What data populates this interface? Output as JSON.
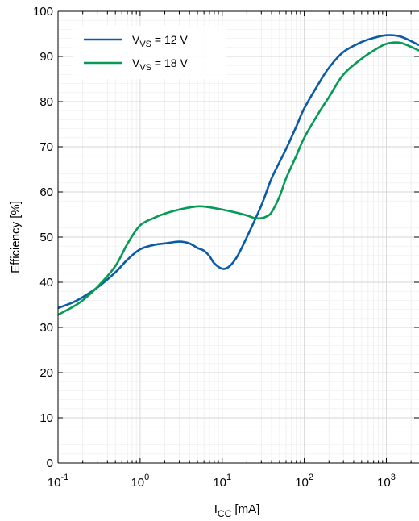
{
  "chart_data": {
    "type": "line",
    "xscale": "log",
    "xlim": [
      0.1,
      2500
    ],
    "ylim": [
      0,
      100
    ],
    "grid": true,
    "legend_position": "top-left",
    "xlabel": {
      "main": "I",
      "sub": "CC",
      "unit": " [mA]"
    },
    "ylabel": "Efficiency [%]",
    "x_ticks": [
      {
        "value": 0.1,
        "base": "10",
        "exp": "-1"
      },
      {
        "value": 1,
        "base": "10",
        "exp": "0"
      },
      {
        "value": 10,
        "base": "10",
        "exp": "1"
      },
      {
        "value": 100,
        "base": "10",
        "exp": "2"
      },
      {
        "value": 1000,
        "base": "10",
        "exp": "3"
      }
    ],
    "y_ticks": [
      "0",
      "10",
      "20",
      "30",
      "40",
      "50",
      "60",
      "70",
      "80",
      "90",
      "100"
    ],
    "series": [
      {
        "label": {
          "main": "V",
          "sub": "VS",
          "rest": " = 12 V"
        },
        "color": "#0a5ca8",
        "x": [
          0.1,
          0.15,
          0.2,
          0.3,
          0.5,
          0.7,
          1,
          1.5,
          2,
          3,
          4,
          5,
          6,
          7,
          8,
          10,
          12,
          15,
          20,
          30,
          40,
          60,
          80,
          100,
          150,
          200,
          300,
          500,
          700,
          1000,
          1500,
          2500
        ],
        "y": [
          34.3,
          35.5,
          36.7,
          38.8,
          42.2,
          45.0,
          47.3,
          48.3,
          48.6,
          49.0,
          48.6,
          47.6,
          47.0,
          45.8,
          44.2,
          43.0,
          43.4,
          45.5,
          50.0,
          57.0,
          63.0,
          69.5,
          74.5,
          78.5,
          84.0,
          87.5,
          91.0,
          93.2,
          94.1,
          94.7,
          94.4,
          92.5
        ]
      },
      {
        "label": {
          "main": "V",
          "sub": "VS",
          "rest": " = 18 V"
        },
        "color": "#079a56",
        "x": [
          0.1,
          0.15,
          0.2,
          0.3,
          0.5,
          0.7,
          1,
          1.5,
          2,
          3,
          5,
          7,
          10,
          15,
          20,
          25,
          30,
          35,
          40,
          50,
          60,
          80,
          100,
          150,
          200,
          300,
          500,
          700,
          1000,
          1500,
          2500
        ],
        "y": [
          32.8,
          34.5,
          36.0,
          38.9,
          43.6,
          48.5,
          52.6,
          54.3,
          55.2,
          56.1,
          56.8,
          56.6,
          56.1,
          55.4,
          54.8,
          54.2,
          54.2,
          54.6,
          55.5,
          59.0,
          63.0,
          68.0,
          72.0,
          77.5,
          81.0,
          86.0,
          89.5,
          91.3,
          92.8,
          93.0,
          91.3
        ]
      }
    ]
  }
}
